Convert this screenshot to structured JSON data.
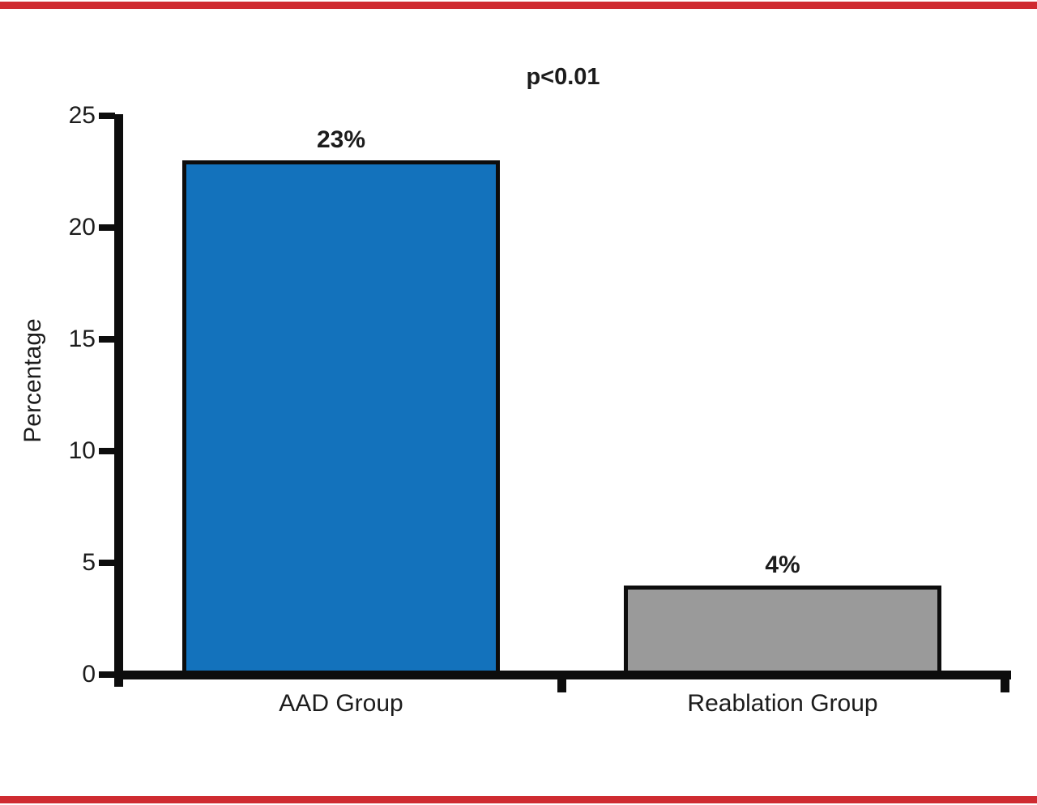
{
  "figure": {
    "top_rule_color": "#cf2b31",
    "bottom_rule_color": "#cf2b31",
    "background_color": "#ffffff"
  },
  "chart_data": {
    "type": "bar",
    "title": "",
    "annotation": "p<0.01",
    "ylabel": "Percentage",
    "xlabel": "",
    "categories": [
      "AAD Group",
      "Reablation Group"
    ],
    "values": [
      23,
      4
    ],
    "value_labels": [
      "23%",
      "4%"
    ],
    "bar_colors": [
      "#1372bc",
      "#9a9a9a"
    ],
    "bar_border_color": "#0d0d0d",
    "axis_color": "#0d0d0d",
    "text_color": "#1c1c1c",
    "ylim": [
      0,
      25
    ],
    "yticks": [
      0,
      5,
      10,
      15,
      20,
      25
    ],
    "grid": false,
    "legend": false
  }
}
